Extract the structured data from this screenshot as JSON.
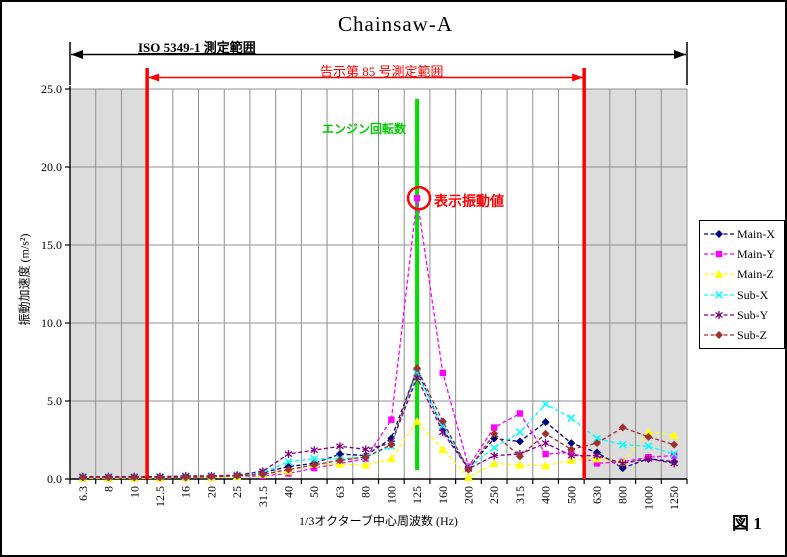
{
  "window": {
    "figure_label": "図 1"
  },
  "annotations": {
    "iso_range_label": "ISO 5349-1 測定範囲",
    "notice_range_label": "告示第 85 号測定範囲",
    "engine_speed_label": "エンジン回転数",
    "displayed_value_label": "表示振動値",
    "annotation_red": "#FF0000",
    "engine_line_green": "#00E000"
  },
  "chart_data": {
    "type": "line",
    "title": "Chainsaw-A",
    "xlabel": "1/3オクターブ中心周波数 (Hz)",
    "ylabel": "振動加速度 (m/s²)",
    "ylim": [
      0,
      25
    ],
    "ytick_step": 5,
    "ytick_labels": [
      "0.0",
      "5.0",
      "10.0",
      "15.0",
      "20.0",
      "25.0"
    ],
    "grid": true,
    "legend_position": "right",
    "categories": [
      "6.3",
      "8",
      "10",
      "12.5",
      "16",
      "20",
      "25",
      "31.5",
      "40",
      "50",
      "63",
      "80",
      "100",
      "125",
      "160",
      "200",
      "250",
      "315",
      "400",
      "500",
      "630",
      "800",
      "1000",
      "1250"
    ],
    "series": [
      {
        "name": "Main-X",
        "color": "#000080",
        "marker": "diamond",
        "values": [
          0.1,
          0.1,
          0.1,
          0.1,
          0.1,
          0.15,
          0.2,
          0.4,
          0.8,
          1.0,
          1.6,
          1.5,
          2.6,
          7.0,
          3.2,
          0.7,
          2.6,
          2.4,
          3.65,
          2.3,
          1.7,
          0.7,
          1.3,
          1.1
        ]
      },
      {
        "name": "Main-Y",
        "color": "#FF00FF",
        "marker": "square",
        "values": [
          0.1,
          0.1,
          0.1,
          0.1,
          0.1,
          0.1,
          0.15,
          0.2,
          0.35,
          0.7,
          1.0,
          1.3,
          3.8,
          18.0,
          6.8,
          0.8,
          3.3,
          4.2,
          1.6,
          1.7,
          1.0,
          1.1,
          1.4,
          1.5
        ]
      },
      {
        "name": "Main-Z",
        "color": "#FFFF00",
        "marker": "triangle",
        "values": [
          0.05,
          0.05,
          0.05,
          0.05,
          0.1,
          0.1,
          0.15,
          0.3,
          0.5,
          0.95,
          0.95,
          0.9,
          1.3,
          3.7,
          1.9,
          0.1,
          1.0,
          0.9,
          0.85,
          1.2,
          1.3,
          1.1,
          3.0,
          2.8
        ]
      },
      {
        "name": "Sub-X",
        "color": "#00FFFF",
        "marker": "x",
        "values": [
          0.15,
          0.15,
          0.15,
          0.15,
          0.2,
          0.2,
          0.25,
          0.4,
          1.1,
          1.3,
          1.3,
          1.4,
          2.1,
          6.8,
          3.4,
          0.7,
          2.0,
          3.0,
          4.8,
          3.9,
          2.6,
          2.2,
          2.1,
          1.6
        ]
      },
      {
        "name": "Sub-Y",
        "color": "#800080",
        "marker": "asterisk",
        "values": [
          0.15,
          0.15,
          0.15,
          0.15,
          0.2,
          0.2,
          0.25,
          0.5,
          1.6,
          1.85,
          2.1,
          1.9,
          2.3,
          6.5,
          3.0,
          0.65,
          1.5,
          1.6,
          2.3,
          1.5,
          1.5,
          1.0,
          1.3,
          1.0
        ]
      },
      {
        "name": "Sub-Z",
        "color": "#A03030",
        "marker": "diamond",
        "values": [
          0.1,
          0.1,
          0.1,
          0.1,
          0.1,
          0.15,
          0.2,
          0.3,
          0.6,
          0.9,
          1.2,
          1.4,
          2.2,
          7.1,
          3.7,
          0.6,
          2.9,
          1.45,
          2.9,
          1.9,
          2.3,
          3.3,
          2.7,
          2.2
        ]
      }
    ],
    "iso_measurement_range": {
      "from": "6.3",
      "to": "1250"
    },
    "notice85_measurement_range": {
      "from": "12.5",
      "to": "500"
    },
    "left_shaded_categories": [
      "6.3",
      "8",
      "10"
    ],
    "right_shaded_categories": [
      "630",
      "800",
      "1000",
      "1250"
    ],
    "engine_speed": {
      "category": "125"
    },
    "highlight": {
      "category": "125",
      "series": "Main-Y",
      "value": 18.0
    },
    "shading_color": "#DCDCDC",
    "grid_color": "#909090"
  }
}
